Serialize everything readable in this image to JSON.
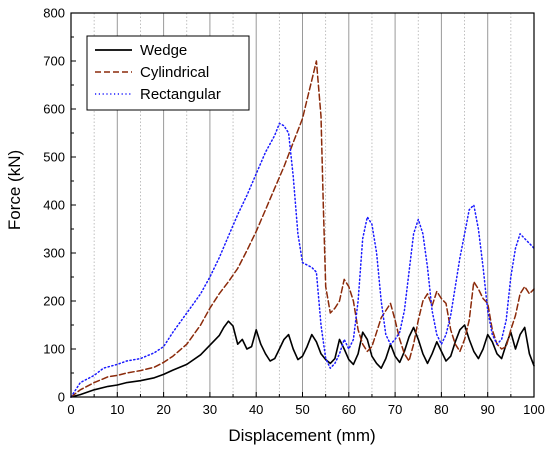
{
  "chart_data": {
    "type": "line",
    "title": "",
    "xlabel": "Displacement (mm)",
    "ylabel": "Force (kN)",
    "xlim": [
      0,
      100
    ],
    "ylim": [
      0,
      800
    ],
    "x_ticks": [
      0,
      10,
      20,
      30,
      40,
      50,
      60,
      70,
      80,
      90,
      100
    ],
    "y_ticks": [
      0,
      100,
      200,
      300,
      400,
      500,
      600,
      700,
      800
    ],
    "grid": "vertical lines every 5 mm (solid at major, dotted at minor)",
    "legend_position": "top-left",
    "series": [
      {
        "name": "Wedge",
        "color": "#000000",
        "dash": "solid",
        "points": [
          [
            0,
            0
          ],
          [
            2,
            5
          ],
          [
            5,
            15
          ],
          [
            8,
            22
          ],
          [
            10,
            25
          ],
          [
            12,
            30
          ],
          [
            15,
            34
          ],
          [
            18,
            40
          ],
          [
            20,
            47
          ],
          [
            22,
            56
          ],
          [
            25,
            68
          ],
          [
            28,
            88
          ],
          [
            30,
            108
          ],
          [
            32,
            128
          ],
          [
            33,
            145
          ],
          [
            34,
            158
          ],
          [
            35,
            148
          ],
          [
            36,
            110
          ],
          [
            37,
            120
          ],
          [
            38,
            100
          ],
          [
            39,
            105
          ],
          [
            40,
            140
          ],
          [
            41,
            110
          ],
          [
            42,
            90
          ],
          [
            43,
            75
          ],
          [
            44,
            80
          ],
          [
            45,
            100
          ],
          [
            46,
            120
          ],
          [
            47,
            130
          ],
          [
            48,
            100
          ],
          [
            49,
            78
          ],
          [
            50,
            85
          ],
          [
            51,
            105
          ],
          [
            52,
            130
          ],
          [
            53,
            115
          ],
          [
            54,
            90
          ],
          [
            55,
            78
          ],
          [
            56,
            70
          ],
          [
            57,
            80
          ],
          [
            58,
            120
          ],
          [
            59,
            100
          ],
          [
            60,
            78
          ],
          [
            61,
            68
          ],
          [
            62,
            90
          ],
          [
            63,
            135
          ],
          [
            64,
            120
          ],
          [
            65,
            85
          ],
          [
            66,
            70
          ],
          [
            67,
            60
          ],
          [
            68,
            80
          ],
          [
            69,
            110
          ],
          [
            70,
            85
          ],
          [
            71,
            72
          ],
          [
            72,
            95
          ],
          [
            73,
            125
          ],
          [
            74,
            145
          ],
          [
            75,
            120
          ],
          [
            76,
            90
          ],
          [
            77,
            70
          ],
          [
            78,
            90
          ],
          [
            79,
            115
          ],
          [
            80,
            95
          ],
          [
            81,
            75
          ],
          [
            82,
            85
          ],
          [
            83,
            115
          ],
          [
            84,
            140
          ],
          [
            85,
            150
          ],
          [
            86,
            120
          ],
          [
            87,
            95
          ],
          [
            88,
            80
          ],
          [
            89,
            100
          ],
          [
            90,
            130
          ],
          [
            91,
            115
          ],
          [
            92,
            90
          ],
          [
            93,
            80
          ],
          [
            94,
            110
          ],
          [
            95,
            135
          ],
          [
            96,
            100
          ],
          [
            97,
            130
          ],
          [
            98,
            145
          ],
          [
            99,
            90
          ],
          [
            100,
            65
          ]
        ]
      },
      {
        "name": "Cylindrical",
        "color": "#8b2a0a",
        "dash": "dashed",
        "points": [
          [
            0,
            0
          ],
          [
            2,
            15
          ],
          [
            5,
            30
          ],
          [
            8,
            42
          ],
          [
            10,
            45
          ],
          [
            12,
            50
          ],
          [
            15,
            55
          ],
          [
            18,
            62
          ],
          [
            20,
            72
          ],
          [
            22,
            85
          ],
          [
            25,
            110
          ],
          [
            28,
            150
          ],
          [
            30,
            185
          ],
          [
            32,
            215
          ],
          [
            34,
            240
          ],
          [
            36,
            268
          ],
          [
            38,
            305
          ],
          [
            40,
            345
          ],
          [
            42,
            390
          ],
          [
            44,
            435
          ],
          [
            46,
            480
          ],
          [
            48,
            530
          ],
          [
            50,
            580
          ],
          [
            51,
            620
          ],
          [
            52,
            660
          ],
          [
            53,
            700
          ],
          [
            54,
            585
          ],
          [
            54.5,
            400
          ],
          [
            55,
            230
          ],
          [
            56,
            175
          ],
          [
            57,
            185
          ],
          [
            58,
            200
          ],
          [
            59,
            245
          ],
          [
            60,
            230
          ],
          [
            61,
            200
          ],
          [
            62,
            140
          ],
          [
            63,
            110
          ],
          [
            64,
            95
          ],
          [
            65,
            105
          ],
          [
            66,
            135
          ],
          [
            67,
            165
          ],
          [
            68,
            180
          ],
          [
            69,
            195
          ],
          [
            70,
            160
          ],
          [
            71,
            120
          ],
          [
            72,
            90
          ],
          [
            73,
            75
          ],
          [
            74,
            110
          ],
          [
            75,
            160
          ],
          [
            76,
            200
          ],
          [
            77,
            215
          ],
          [
            78,
            190
          ],
          [
            79,
            220
          ],
          [
            80,
            205
          ],
          [
            81,
            195
          ],
          [
            82,
            140
          ],
          [
            83,
            110
          ],
          [
            84,
            95
          ],
          [
            85,
            120
          ],
          [
            86,
            160
          ],
          [
            87,
            240
          ],
          [
            88,
            225
          ],
          [
            89,
            205
          ],
          [
            90,
            195
          ],
          [
            91,
            140
          ],
          [
            92,
            110
          ],
          [
            93,
            100
          ],
          [
            94,
            105
          ],
          [
            95,
            140
          ],
          [
            96,
            170
          ],
          [
            97,
            215
          ],
          [
            98,
            230
          ],
          [
            99,
            215
          ],
          [
            100,
            225
          ]
        ]
      },
      {
        "name": "Rectangular",
        "color": "#1a1aff",
        "dash": "dotted",
        "points": [
          [
            0,
            0
          ],
          [
            2,
            30
          ],
          [
            5,
            45
          ],
          [
            7,
            60
          ],
          [
            10,
            68
          ],
          [
            12,
            75
          ],
          [
            15,
            80
          ],
          [
            18,
            92
          ],
          [
            20,
            105
          ],
          [
            22,
            135
          ],
          [
            25,
            175
          ],
          [
            28,
            215
          ],
          [
            30,
            250
          ],
          [
            32,
            290
          ],
          [
            34,
            335
          ],
          [
            36,
            380
          ],
          [
            38,
            420
          ],
          [
            40,
            465
          ],
          [
            42,
            510
          ],
          [
            44,
            545
          ],
          [
            45,
            570
          ],
          [
            46,
            565
          ],
          [
            47,
            550
          ],
          [
            48,
            460
          ],
          [
            49,
            340
          ],
          [
            50,
            280
          ],
          [
            51,
            275
          ],
          [
            52,
            270
          ],
          [
            53,
            260
          ],
          [
            54,
            150
          ],
          [
            55,
            80
          ],
          [
            56,
            60
          ],
          [
            57,
            70
          ],
          [
            58,
            90
          ],
          [
            59,
            120
          ],
          [
            60,
            100
          ],
          [
            61,
            120
          ],
          [
            62,
            200
          ],
          [
            63,
            330
          ],
          [
            64,
            375
          ],
          [
            65,
            360
          ],
          [
            66,
            300
          ],
          [
            67,
            200
          ],
          [
            68,
            130
          ],
          [
            69,
            110
          ],
          [
            70,
            120
          ],
          [
            71,
            135
          ],
          [
            72,
            180
          ],
          [
            73,
            260
          ],
          [
            74,
            340
          ],
          [
            75,
            370
          ],
          [
            76,
            340
          ],
          [
            77,
            270
          ],
          [
            78,
            180
          ],
          [
            79,
            130
          ],
          [
            80,
            110
          ],
          [
            81,
            130
          ],
          [
            82,
            170
          ],
          [
            83,
            230
          ],
          [
            84,
            290
          ],
          [
            85,
            340
          ],
          [
            86,
            390
          ],
          [
            87,
            400
          ],
          [
            88,
            350
          ],
          [
            89,
            270
          ],
          [
            90,
            180
          ],
          [
            91,
            130
          ],
          [
            92,
            110
          ],
          [
            93,
            120
          ],
          [
            94,
            160
          ],
          [
            95,
            250
          ],
          [
            96,
            310
          ],
          [
            97,
            340
          ],
          [
            98,
            330
          ],
          [
            99,
            320
          ],
          [
            100,
            310
          ]
        ]
      }
    ]
  }
}
